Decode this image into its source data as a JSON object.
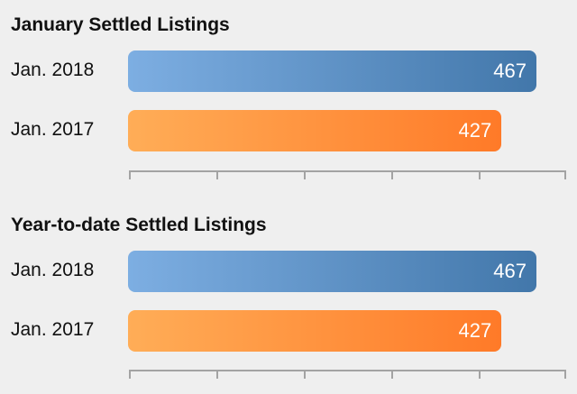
{
  "chart_data": [
    {
      "type": "bar",
      "orientation": "horizontal",
      "title": "January Settled Listings",
      "categories": [
        "Jan. 2018",
        "Jan. 2017"
      ],
      "values": [
        467,
        427
      ],
      "value_labels": [
        "467",
        "427"
      ],
      "colors": [
        "#5a8cc4",
        "#ff922f"
      ],
      "xlim": [
        0,
        500
      ],
      "x_ticks": [
        0,
        100,
        200,
        300,
        400,
        500
      ],
      "tick_labels_shown": false
    },
    {
      "type": "bar",
      "orientation": "horizontal",
      "title": "Year-to-date Settled Listings",
      "categories": [
        "Jan. 2018",
        "Jan. 2017"
      ],
      "values": [
        467,
        427
      ],
      "value_labels": [
        "467",
        "427"
      ],
      "colors": [
        "#5a8cc4",
        "#ff922f"
      ],
      "xlim": [
        0,
        500
      ],
      "x_ticks": [
        0,
        100,
        200,
        300,
        400,
        500
      ],
      "tick_labels_shown": false
    }
  ]
}
